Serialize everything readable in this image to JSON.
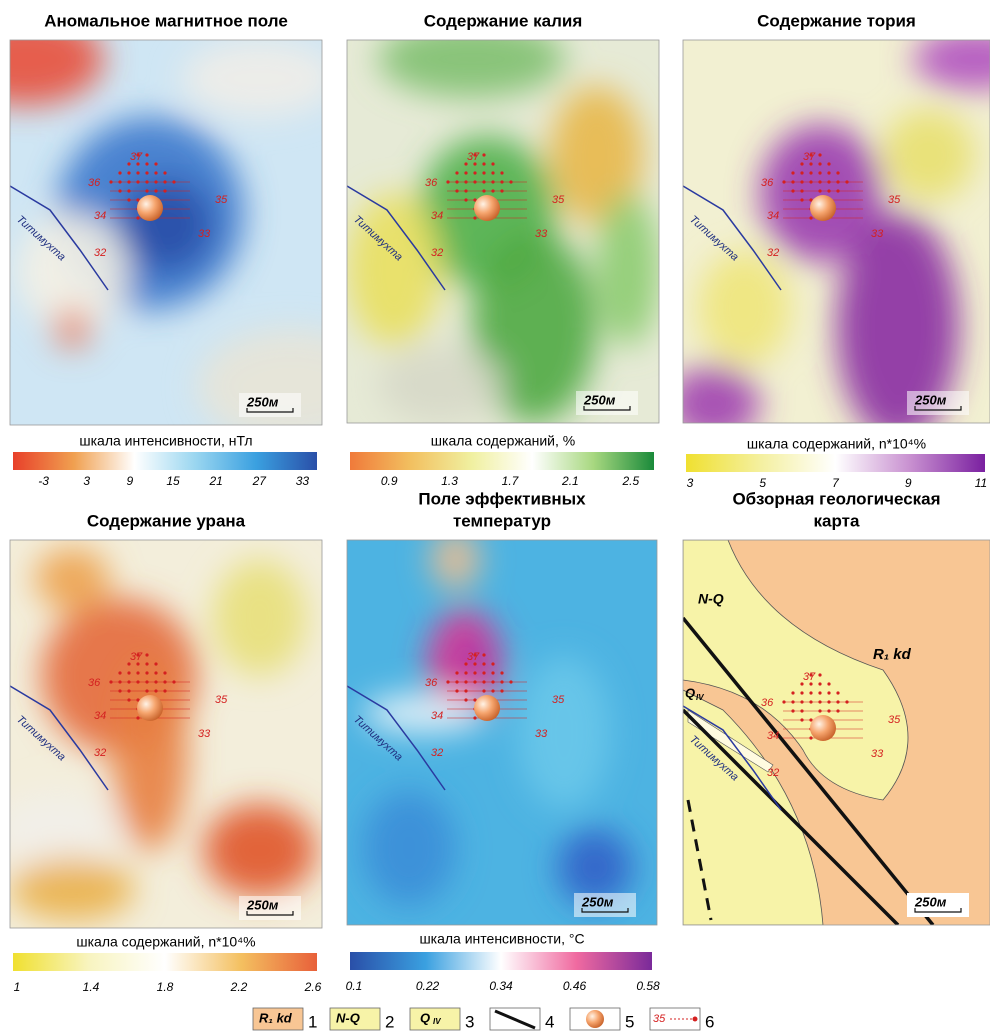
{
  "panels": [
    {
      "title_lines": [
        "Аномальное магнитное поле"
      ],
      "scale_title": "шкала интенсивности, нТл",
      "scale_ticks": [
        "-3",
        "3",
        "9",
        "15",
        "21",
        "27",
        "33"
      ]
    },
    {
      "title_lines": [
        "Содержание калия"
      ],
      "scale_title": "шкала содержаний, %",
      "scale_ticks": [
        "0.9",
        "1.3",
        "1.7",
        "2.1",
        "2.5"
      ]
    },
    {
      "title_lines": [
        "Содержание тория"
      ],
      "scale_title": "шкала содержаний, n*10⁴%",
      "scale_ticks": [
        "3",
        "5",
        "7",
        "9",
        "11"
      ]
    },
    {
      "title_lines": [
        "Содержание урана"
      ],
      "scale_title": "шкала содержаний, n*10⁴%",
      "scale_ticks": [
        "1",
        "1.4",
        "1.8",
        "2.2",
        "2.6"
      ]
    },
    {
      "title_lines": [
        "Поле эффективных",
        "температур"
      ],
      "scale_title": "шкала интенсивности, °С",
      "scale_ticks": [
        "0.1",
        "0.22",
        "0.34",
        "0.46",
        "0.58"
      ]
    },
    {
      "title_lines": [
        "Обзорная геологическая",
        "карта"
      ]
    }
  ],
  "well_labels": [
    "37",
    "36",
    "35",
    "34",
    "33",
    "32"
  ],
  "river": "Титимухта",
  "scale_bar": "250м",
  "geology_labels": {
    "nq": "N-Q",
    "r1kd": "R₁ kd",
    "q": "Q",
    "iv": "IV"
  },
  "legend": [
    {
      "symbol": "R₁ kd",
      "num": "1"
    },
    {
      "symbol": "N-Q",
      "num": "2"
    },
    {
      "symbol": "Q",
      "sub": "IV",
      "num": "3"
    },
    {
      "num": "4"
    },
    {
      "num": "5"
    },
    {
      "symbol": "35",
      "num": "6"
    }
  ]
}
